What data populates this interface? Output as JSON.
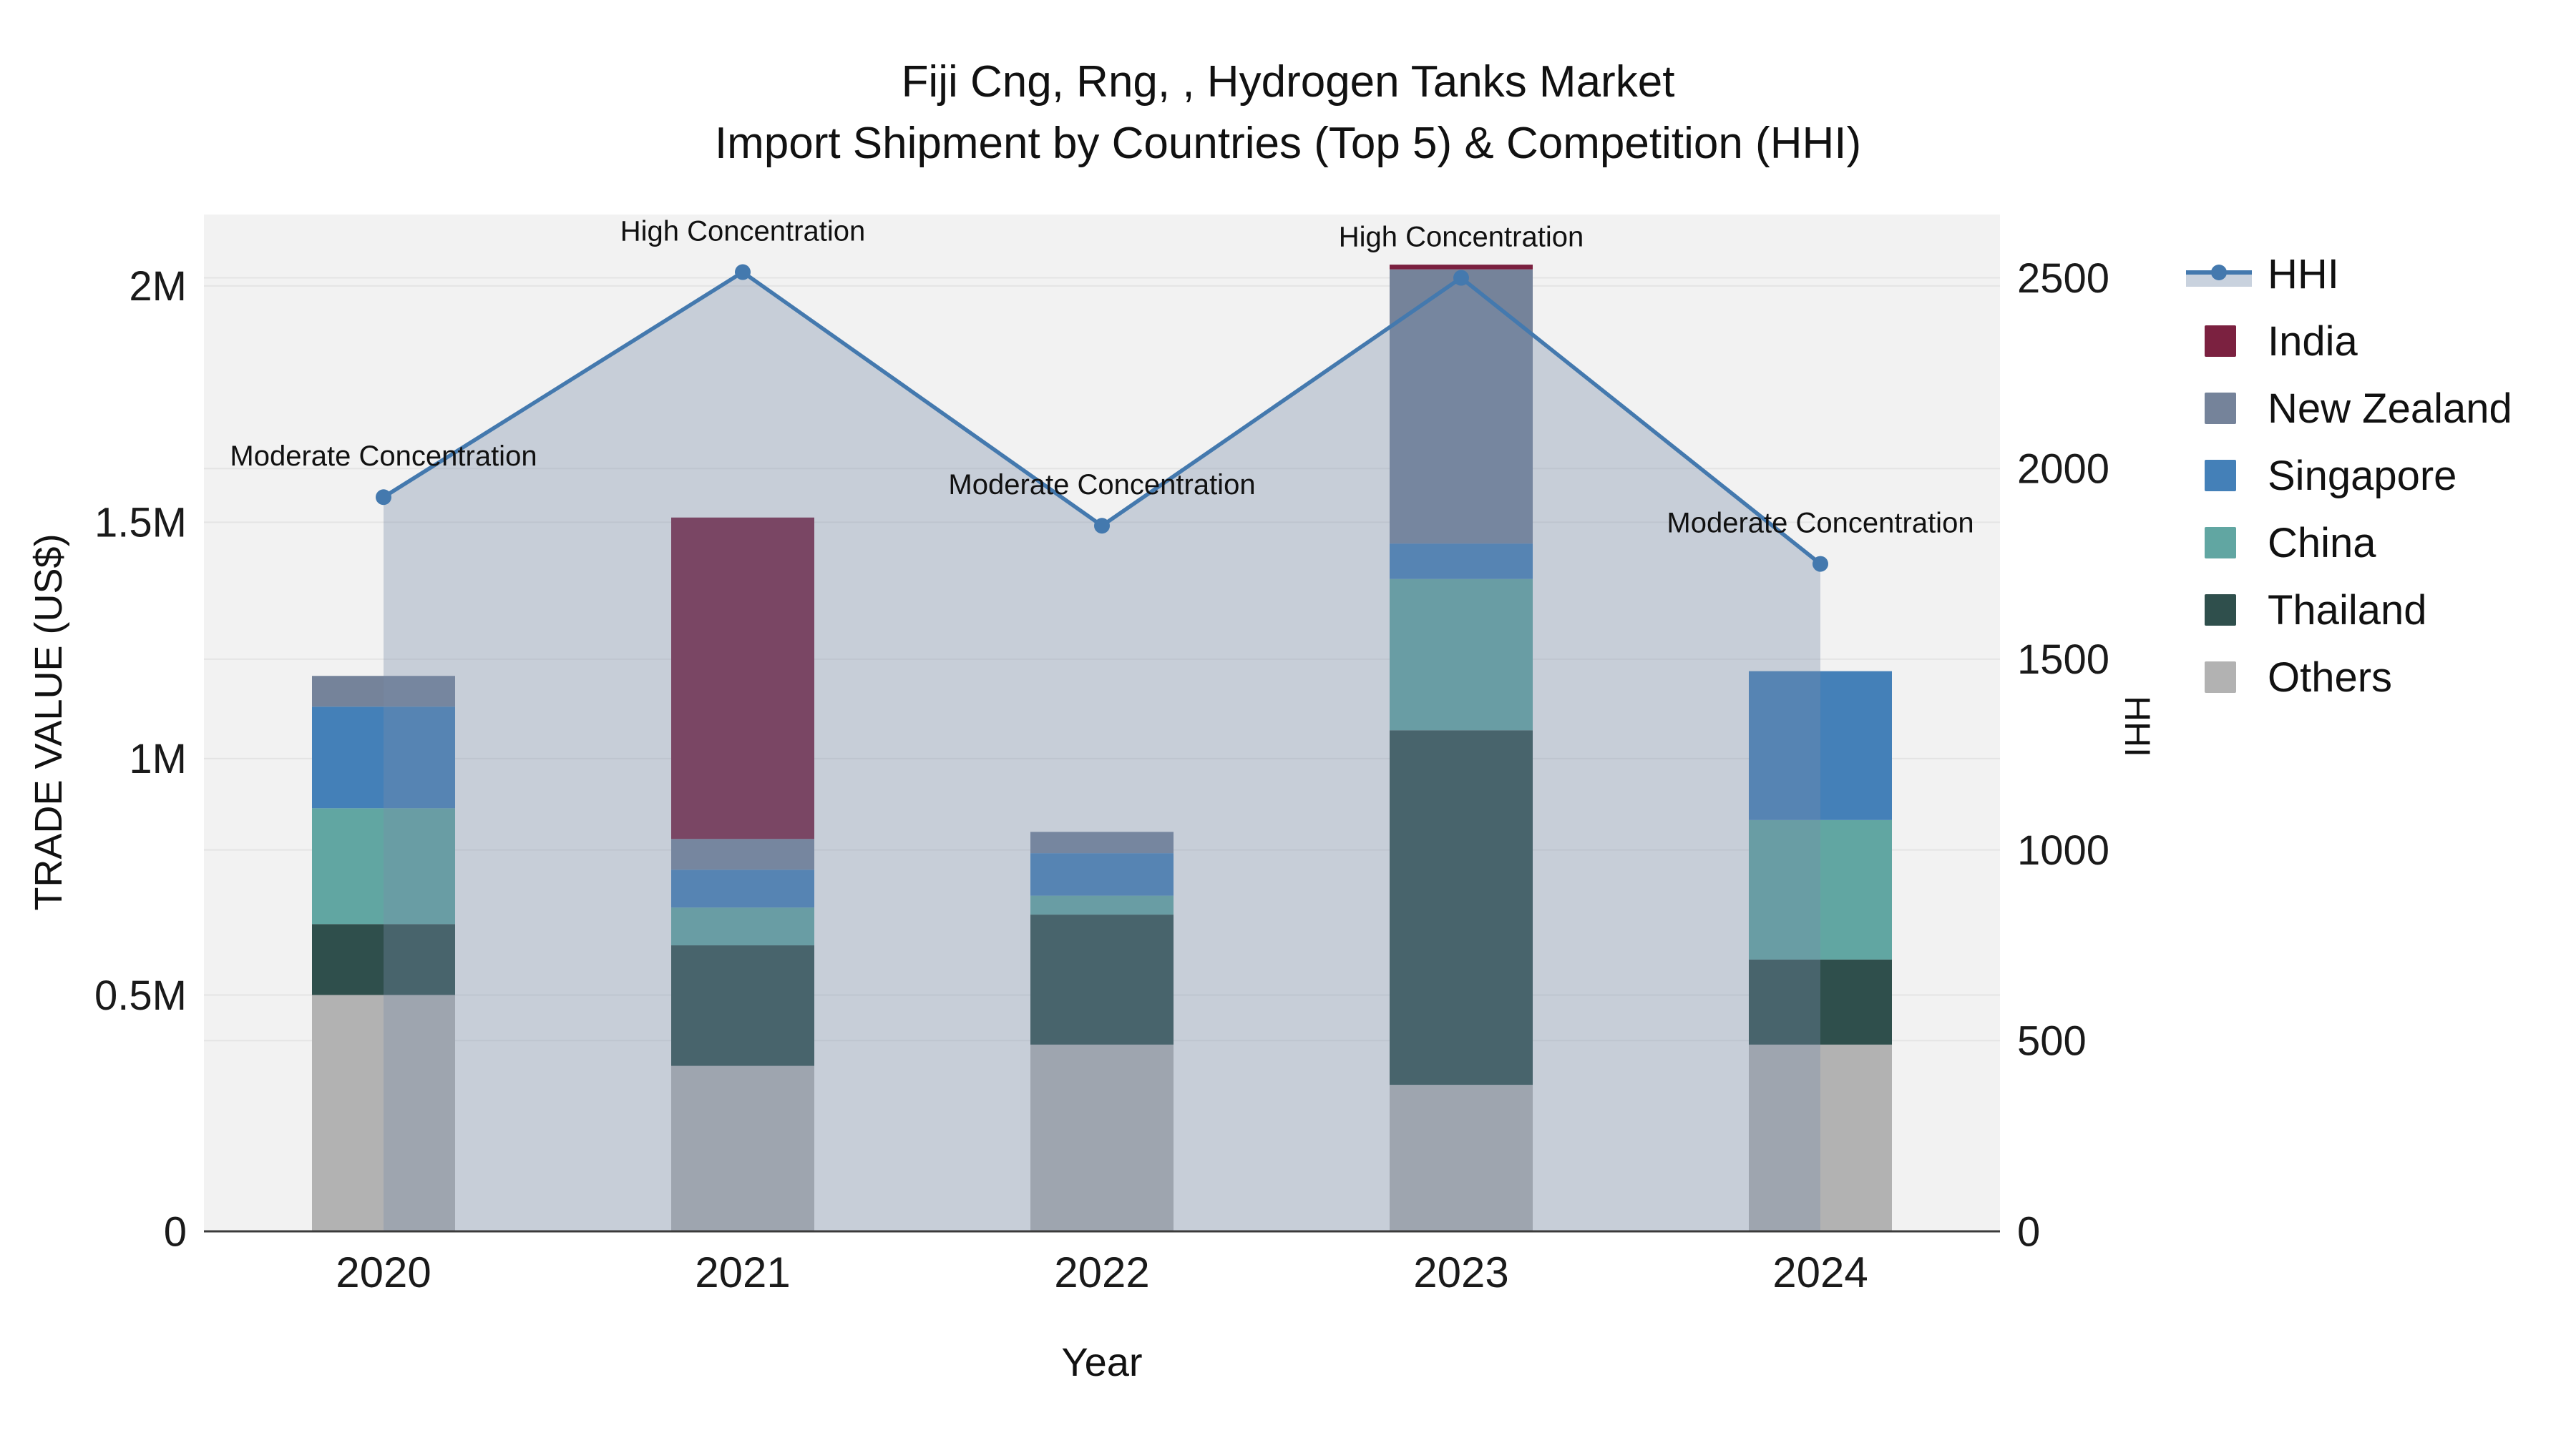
{
  "title": {
    "line1": "Fiji Cng, Rng, , Hydrogen Tanks Market",
    "line2": "Import Shipment by Countries (Top 5) & Competition (HHI)"
  },
  "axes": {
    "x_title": "Year",
    "y_left_title": "TRADE VALUE (US$)",
    "y_right_title": "HHI",
    "x_ticks": [
      "2020",
      "2021",
      "2022",
      "2023",
      "2024"
    ],
    "y_left_ticks": [
      {
        "label": "0",
        "value": 0
      },
      {
        "label": "0.5M",
        "value": 500000
      },
      {
        "label": "1M",
        "value": 1000000
      },
      {
        "label": "1.5M",
        "value": 1500000
      },
      {
        "label": "2M",
        "value": 2000000
      }
    ],
    "y_right_ticks": [
      {
        "label": "0",
        "value": 0
      },
      {
        "label": "500",
        "value": 500
      },
      {
        "label": "1000",
        "value": 1000
      },
      {
        "label": "1500",
        "value": 1500
      },
      {
        "label": "2000",
        "value": 2000
      },
      {
        "label": "2500",
        "value": 2500
      }
    ]
  },
  "chart_data": {
    "type": "bar",
    "subtype": "stacked-bars-with-line-overlay",
    "categories": [
      "2020",
      "2021",
      "2022",
      "2023",
      "2024"
    ],
    "bar_value_unit": "US$ trade value",
    "stack_order_bottom_to_top": [
      "Others",
      "Thailand",
      "China",
      "Singapore",
      "New Zealand",
      "India"
    ],
    "series": [
      {
        "name": "India",
        "color": "#7B2140",
        "values": [
          0,
          680000,
          0,
          10000,
          0
        ]
      },
      {
        "name": "New Zealand",
        "color": "#75839A",
        "values": [
          65000,
          65000,
          45000,
          580000,
          0
        ]
      },
      {
        "name": "Singapore",
        "color": "#4480B8",
        "values": [
          215000,
          80000,
          90000,
          75000,
          315000
        ]
      },
      {
        "name": "China",
        "color": "#61A6A2",
        "values": [
          245000,
          80000,
          40000,
          320000,
          295000
        ]
      },
      {
        "name": "Thailand",
        "color": "#2F4F4C",
        "values": [
          150000,
          255000,
          275000,
          750000,
          180000
        ]
      },
      {
        "name": "Others",
        "color": "#B2B2B2",
        "values": [
          500000,
          350000,
          395000,
          310000,
          395000
        ]
      }
    ],
    "line_series": {
      "name": "HHI",
      "color": "#4479AE",
      "area_fill": "rgba(120,140,170,0.35)",
      "values": [
        1925,
        2515,
        1850,
        2500,
        1750
      ]
    },
    "annotations": [
      {
        "category": "2020",
        "text": "Moderate Concentration"
      },
      {
        "category": "2021",
        "text": "High Concentration"
      },
      {
        "category": "2022",
        "text": "Moderate Concentration"
      },
      {
        "category": "2023",
        "text": "High Concentration"
      },
      {
        "category": "2024",
        "text": "Moderate Concentration"
      }
    ],
    "y_left_range": [
      0,
      2151000
    ],
    "y_right_range": [
      0,
      2666
    ],
    "grid": true,
    "legend_position": "right"
  },
  "legend": {
    "items": [
      "HHI",
      "India",
      "New Zealand",
      "Singapore",
      "China",
      "Thailand",
      "Others"
    ]
  },
  "colors": {
    "plot_bg": "#F2F2F2",
    "grid": "#E4E4E4",
    "axis_line": "#3B3B3B",
    "text": "#1A1A1A",
    "legend_hhi_band": "#C9D2DE"
  }
}
